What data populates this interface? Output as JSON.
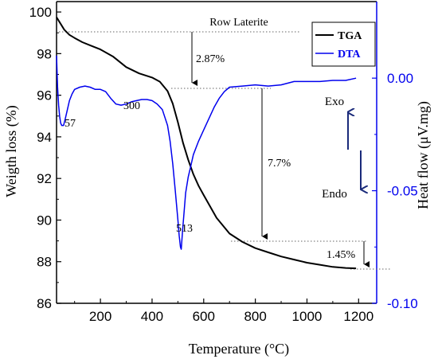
{
  "chart_data": {
    "type": "line",
    "title": "",
    "xlabel": "Temperature (°C)",
    "ylabel_left": "Weigth loss (%)",
    "ylabel_right": "Heat flow (μV.mg)",
    "xlim": [
      30,
      1270
    ],
    "xticks": [
      200,
      400,
      600,
      800,
      1000,
      1200
    ],
    "ylim_left": [
      86,
      100.5
    ],
    "yticks_left": [
      86,
      88,
      90,
      92,
      94,
      96,
      98,
      100
    ],
    "ylim_right": [
      -0.1,
      0.034
    ],
    "yticks_right": [
      -0.1,
      -0.05,
      0.0
    ],
    "ytick_labels_right": [
      "-0.10",
      "-0.05",
      "0.00"
    ],
    "legend_position": "top-right",
    "series": [
      {
        "name": "TGA",
        "axis": "left",
        "color": "#000000",
        "x": [
          30,
          40,
          60,
          80,
          100,
          130,
          160,
          200,
          250,
          300,
          350,
          400,
          430,
          460,
          480,
          500,
          520,
          540,
          560,
          580,
          600,
          650,
          700,
          750,
          800,
          850,
          900,
          950,
          1000,
          1050,
          1100,
          1150,
          1190
        ],
        "y": [
          99.75,
          99.55,
          99.15,
          98.9,
          98.75,
          98.55,
          98.4,
          98.2,
          97.85,
          97.35,
          97.05,
          96.85,
          96.65,
          96.2,
          95.6,
          94.7,
          93.7,
          92.9,
          92.2,
          91.65,
          91.2,
          90.1,
          89.35,
          88.95,
          88.65,
          88.45,
          88.25,
          88.1,
          87.95,
          87.85,
          87.75,
          87.7,
          87.68
        ]
      },
      {
        "name": "DTA",
        "axis": "right",
        "color": "#0000ee",
        "x": [
          30,
          34,
          38,
          42,
          46,
          50,
          57,
          64,
          72,
          80,
          90,
          100,
          120,
          140,
          160,
          180,
          200,
          220,
          240,
          260,
          280,
          300,
          320,
          340,
          360,
          380,
          400,
          420,
          440,
          460,
          470,
          480,
          490,
          500,
          505,
          510,
          513,
          518,
          525,
          530,
          540,
          550,
          560,
          580,
          600,
          620,
          640,
          660,
          680,
          700,
          750,
          800,
          850,
          900,
          950,
          1000,
          1050,
          1100,
          1150,
          1190
        ],
        "y": [
          0.01,
          -0.004,
          -0.012,
          -0.017,
          -0.02,
          -0.021,
          -0.021,
          -0.018,
          -0.014,
          -0.01,
          -0.007,
          -0.005,
          -0.004,
          -0.0035,
          -0.004,
          -0.005,
          -0.005,
          -0.006,
          -0.009,
          -0.0115,
          -0.012,
          -0.0115,
          -0.0105,
          -0.01,
          -0.0095,
          -0.0095,
          -0.01,
          -0.0115,
          -0.014,
          -0.021,
          -0.028,
          -0.038,
          -0.05,
          -0.063,
          -0.07,
          -0.075,
          -0.076,
          -0.068,
          -0.058,
          -0.051,
          -0.044,
          -0.039,
          -0.034,
          -0.028,
          -0.023,
          -0.018,
          -0.013,
          -0.009,
          -0.006,
          -0.004,
          -0.0035,
          -0.003,
          -0.0035,
          -0.003,
          -0.0015,
          -0.0015,
          -0.0015,
          -0.001,
          -0.001,
          0.0
        ]
      }
    ],
    "annotations": {
      "sample_name": "Row Laterite",
      "loss_1": "2.87%",
      "loss_2": "7.7%",
      "loss_3": "1.45%",
      "peak_57": "57",
      "peak_300": "300",
      "peak_513": "513",
      "exo": "Exo",
      "endo": "Endo"
    }
  }
}
